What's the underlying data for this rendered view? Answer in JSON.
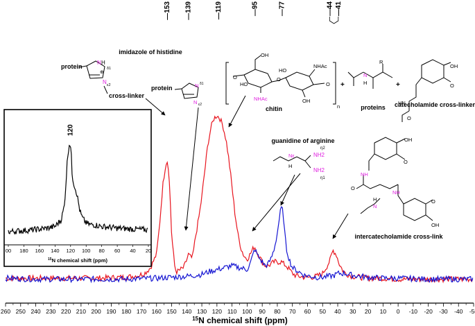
{
  "chart_data": {
    "type": "line",
    "xlabel_prefix": "15",
    "xlabel": "N chemical shift (ppm)",
    "x_reversed": true,
    "xlim": [
      260,
      -50
    ],
    "xticks": [
      260,
      250,
      240,
      230,
      220,
      210,
      200,
      190,
      180,
      170,
      160,
      150,
      140,
      130,
      120,
      110,
      100,
      90,
      80,
      70,
      60,
      50,
      40,
      30,
      20,
      10,
      0,
      -10,
      -20,
      -30,
      -40,
      -50
    ],
    "series": [
      {
        "color": "#e8141e",
        "x": [
          260,
          240,
          220,
          200,
          180,
          172,
          168,
          164,
          160,
          158,
          156,
          154,
          153,
          152,
          151,
          150,
          148,
          147,
          146,
          144,
          142,
          140,
          139,
          138,
          137,
          136,
          134,
          132,
          130,
          128,
          126,
          124,
          122,
          120,
          118,
          116,
          114,
          112,
          110,
          108,
          106,
          104,
          102,
          100,
          98,
          96,
          95,
          94,
          92,
          90,
          88,
          86,
          84,
          82,
          80,
          78,
          77,
          76,
          74,
          72,
          70,
          68,
          66,
          62,
          58,
          54,
          50,
          47,
          45,
          44,
          43,
          42,
          41,
          40,
          39,
          37,
          35,
          30,
          20,
          10,
          0,
          -20,
          -50
        ],
        "values": [
          0.05,
          0.05,
          0.05,
          0.05,
          0.06,
          0.08,
          0.1,
          0.16,
          0.3,
          0.6,
          1.0,
          1.24,
          1.28,
          1.2,
          0.9,
          0.5,
          0.18,
          0.12,
          0.12,
          0.14,
          0.16,
          0.24,
          0.3,
          0.28,
          0.26,
          0.28,
          0.5,
          0.68,
          0.9,
          1.18,
          1.45,
          1.62,
          1.72,
          1.75,
          1.72,
          1.64,
          1.5,
          1.28,
          1.0,
          0.72,
          0.5,
          0.36,
          0.28,
          0.25,
          0.3,
          0.36,
          0.38,
          0.34,
          0.28,
          0.22,
          0.18,
          0.18,
          0.2,
          0.22,
          0.22,
          0.22,
          0.22,
          0.2,
          0.18,
          0.14,
          0.1,
          0.08,
          0.07,
          0.06,
          0.06,
          0.07,
          0.1,
          0.18,
          0.24,
          0.3,
          0.34,
          0.32,
          0.3,
          0.25,
          0.2,
          0.14,
          0.1,
          0.07,
          0.05,
          0.05,
          0.04,
          0.04,
          0.04
        ]
      },
      {
        "color": "#1414d2",
        "x": [
          260,
          240,
          220,
          200,
          180,
          160,
          150,
          140,
          130,
          125,
          120,
          115,
          110,
          105,
          100,
          98,
          96,
          95,
          94,
          92,
          90,
          88,
          86,
          84,
          82,
          80,
          79,
          78,
          77,
          76,
          75,
          74,
          72,
          70,
          66,
          62,
          58,
          54,
          50,
          46,
          42,
          40,
          35,
          30,
          20,
          10,
          0,
          -20,
          -50
        ],
        "values": [
          0.05,
          0.04,
          0.04,
          0.04,
          0.04,
          0.05,
          0.06,
          0.07,
          0.09,
          0.12,
          0.14,
          0.16,
          0.18,
          0.16,
          0.14,
          0.2,
          0.3,
          0.36,
          0.32,
          0.26,
          0.22,
          0.18,
          0.2,
          0.26,
          0.36,
          0.52,
          0.64,
          0.74,
          0.8,
          0.7,
          0.5,
          0.36,
          0.24,
          0.16,
          0.12,
          0.08,
          0.07,
          0.06,
          0.06,
          0.07,
          0.08,
          0.1,
          0.1,
          0.08,
          0.06,
          0.05,
          0.05,
          0.04,
          0.04
        ]
      }
    ],
    "peak_labels": [
      "153",
      "139",
      "119",
      "95",
      "77",
      "44",
      "41"
    ],
    "peak_label_positions": [
      153,
      139,
      119,
      95,
      77,
      44,
      41
    ],
    "annotations": [
      "imidazole of histidine",
      "cross-linker",
      "protein",
      "protein",
      "chitin",
      "proteins",
      "catecholamide cross-linker",
      "guanidine of arginine",
      "intercatecholamide cross-link"
    ],
    "inset": {
      "xlabel_prefix": "15",
      "xlabel": "N chemical shift (ppm)",
      "peak_label": "120",
      "xticks": [
        "00",
        "180",
        "160",
        "140",
        "120",
        "100",
        "80",
        "60",
        "40",
        "20"
      ],
      "tick_values": [
        200,
        180,
        160,
        140,
        120,
        100,
        80,
        60,
        40,
        20
      ]
    }
  },
  "structures": {
    "imidazole": {
      "label_protein": "protein",
      "label_crosslinker": "cross-linker",
      "nh": "H",
      "n_symbol": "N",
      "d1": "δ1",
      "e2": "ε2",
      "plus": "⊕"
    },
    "imidazole2": {
      "label_protein": "protein",
      "n_symbol": "N",
      "d1": "δ1",
      "e2": "ε2"
    },
    "chitin": {
      "name": "chitin",
      "oh": "OH",
      "nhac": "NHAc",
      "ho": "HO",
      "o": "O",
      "n": "n"
    },
    "protein_backbone": {
      "r": "R",
      "n": "N",
      "h": "H"
    },
    "catecholamide": {
      "oh": "OH",
      "o": "O",
      "hn": "HN"
    },
    "guanidine": {
      "n_eps": "Nε",
      "h": "H",
      "nh2_top": "NH2",
      "nh2_bot": "NH2",
      "eta2": "η2",
      "eta1": "η1"
    },
    "intercatecholamide": {
      "oh": "OH",
      "o": "O",
      "nh": "NH",
      "n": "N",
      "h": "H"
    }
  },
  "plus_sign": "+"
}
